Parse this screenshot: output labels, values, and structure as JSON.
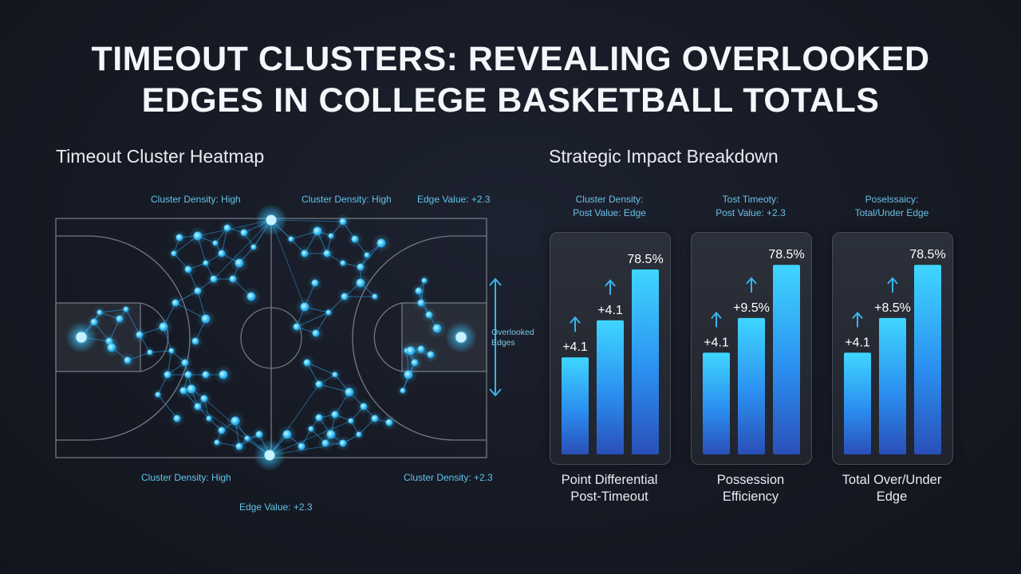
{
  "title": {
    "line1": "TIMEOUT CLUSTERS: REVEALING OVERLOOKED",
    "line2": "EDGES IN COLLEGE BASKETBALL TOTALS"
  },
  "heatmap": {
    "heading": "Timeout Cluster Heatmap",
    "labels": {
      "top_left": "Cluster Density: High",
      "top_center": "Cluster Density: High",
      "top_right": "Edge Value: +2.3",
      "bottom_left": "Cluster Density: High",
      "bottom_right": "Cluster Density: +2.3",
      "bottom_center": "Edge Value: +2.3"
    },
    "arrow_label": "Overlooked Edges",
    "colors": {
      "node": "#3ac6ff",
      "edge": "#2a8ccc",
      "court_line": "#8a909c"
    }
  },
  "impact": {
    "heading": "Strategic Impact Breakdown"
  },
  "chart_data": [
    {
      "type": "bar",
      "caption": [
        "Cluster Density:",
        "Post Value: Edge"
      ],
      "title": "Point Differential Post-Timeout",
      "values": [
        0.42,
        0.58,
        0.8
      ],
      "value_labels": [
        "+4.1",
        "+4.1",
        "78.5%"
      ],
      "up_arrows": [
        true,
        true,
        false
      ]
    },
    {
      "type": "bar",
      "caption": [
        "Tost Timeoty:",
        "Post Value: +2.3"
      ],
      "title": "Possession Efficiency",
      "values": [
        0.44,
        0.59,
        0.82
      ],
      "value_labels": [
        "+4.1",
        "+9.5%",
        "78.5%"
      ],
      "up_arrows": [
        true,
        true,
        false
      ]
    },
    {
      "type": "bar",
      "caption": [
        "Poselssaicy:",
        "Total/Under Edge"
      ],
      "title": "Total Over/Under Edge",
      "values": [
        0.44,
        0.59,
        0.82
      ],
      "value_labels": [
        "+4.1",
        "+8.5%",
        "78.5%"
      ],
      "up_arrows": [
        true,
        true,
        false
      ]
    }
  ]
}
